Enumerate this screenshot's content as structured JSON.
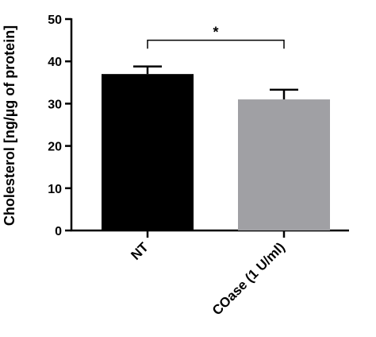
{
  "chart_data": {
    "type": "bar",
    "title": "",
    "xlabel": "",
    "ylabel": "Cholesterol [ng/µg of protein]",
    "ylim": [
      0,
      50
    ],
    "yticks": [
      0,
      10,
      20,
      30,
      40,
      50
    ],
    "grid": false,
    "categories": [
      "NT",
      "COase (1 U/ml)"
    ],
    "values": [
      37,
      31
    ],
    "errors": [
      1.8,
      2.3
    ],
    "colors": [
      "#000000",
      "#a0a0a4"
    ],
    "significance": {
      "between": [
        0,
        1
      ],
      "label": "*",
      "y": 45
    }
  }
}
